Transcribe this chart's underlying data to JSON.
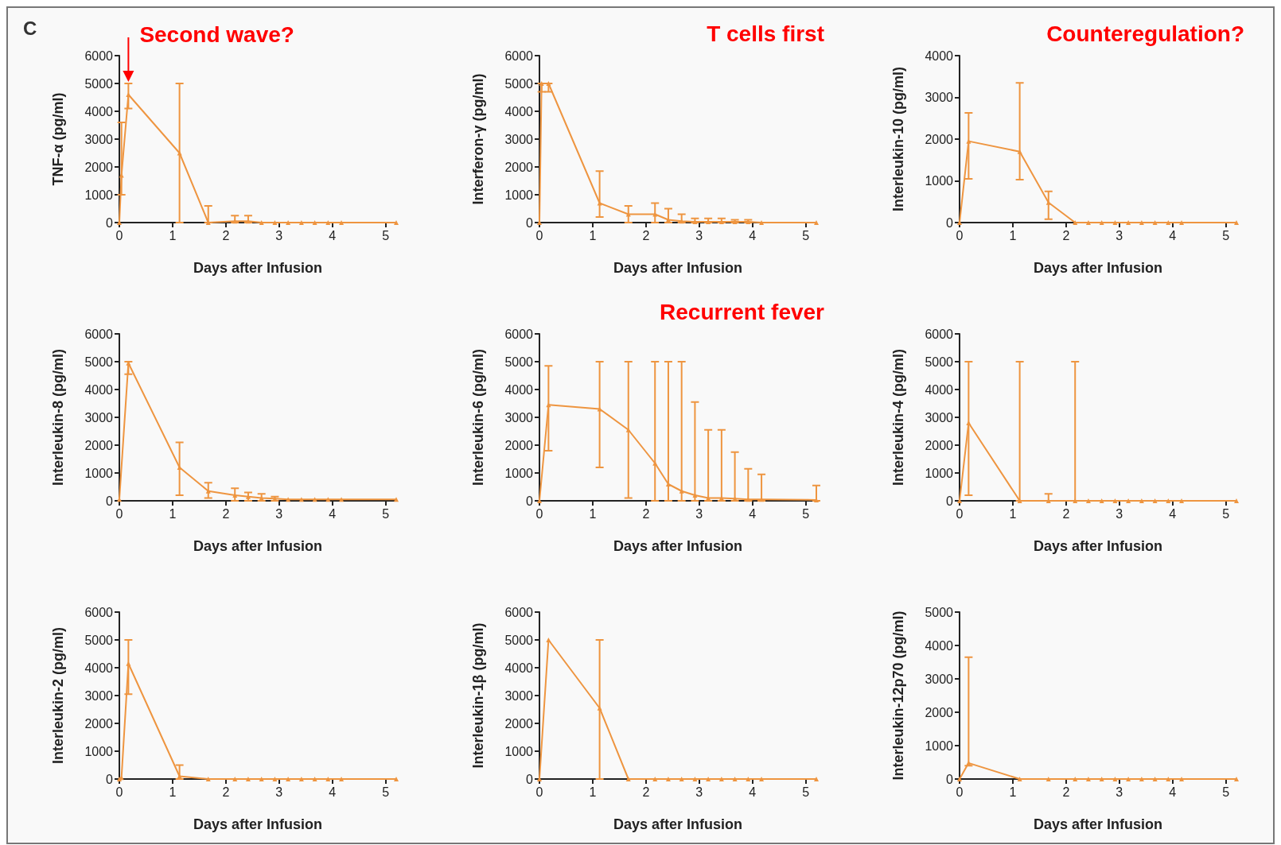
{
  "chart_data": [
    {
      "type": "line",
      "title": "C",
      "xlabel": "Days after Infusion",
      "ylabel": "TNF-α (pg/ml)",
      "xlim": [
        0,
        5.2
      ],
      "xticks": [
        0,
        1,
        2,
        3,
        4,
        5
      ],
      "ylim": [
        0,
        6000
      ],
      "yticks": [
        0,
        1000,
        2000,
        3000,
        4000,
        5000,
        6000
      ],
      "grid": false,
      "marker": "triangle",
      "annotations": [
        {
          "text": "Second wave?",
          "x": 0.17,
          "y": 5000
        }
      ],
      "series": [
        {
          "color": "#ee9540",
          "x": [
            0,
            0.04,
            0.17,
            1.13,
            1.67,
            2.17,
            2.42,
            2.67,
            2.92,
            3.17,
            3.42,
            3.67,
            3.92,
            4.17,
            5.2
          ],
          "values": [
            0,
            1700,
            4600,
            2500,
            0,
            50,
            50,
            0,
            0,
            0,
            0,
            0,
            0,
            0,
            0
          ],
          "errors": [
            null,
            [
              1000,
              3600
            ],
            [
              4100,
              5000
            ],
            [
              0,
              5000
            ],
            [
              0,
              600
            ],
            [
              0,
              250
            ],
            [
              0,
              250
            ],
            null,
            null,
            null,
            null,
            null,
            null,
            null,
            null
          ]
        }
      ]
    },
    {
      "type": "line",
      "xlabel": "Days after Infusion",
      "ylabel": "Interferon-γ (pg/ml)",
      "xlim": [
        0,
        5.2
      ],
      "xticks": [
        0,
        1,
        2,
        3,
        4,
        5
      ],
      "ylim": [
        0,
        6000
      ],
      "yticks": [
        0,
        1000,
        2000,
        3000,
        4000,
        5000,
        6000
      ],
      "grid": false,
      "marker": "triangle",
      "annotations": [
        "T cells first"
      ],
      "series": [
        {
          "color": "#ee9540",
          "x": [
            0,
            0.04,
            0.17,
            1.13,
            1.67,
            2.17,
            2.42,
            2.67,
            2.92,
            3.17,
            3.42,
            3.67,
            3.92,
            4.17,
            5.2
          ],
          "values": [
            0,
            5000,
            5000,
            700,
            300,
            300,
            100,
            50,
            30,
            30,
            30,
            30,
            30,
            0,
            0
          ],
          "errors": [
            null,
            [
              4700,
              5000
            ],
            [
              4700,
              5000
            ],
            [
              200,
              1850
            ],
            [
              0,
              600
            ],
            [
              0,
              700
            ],
            [
              0,
              500
            ],
            [
              0,
              300
            ],
            [
              0,
              150
            ],
            [
              0,
              150
            ],
            [
              0,
              150
            ],
            [
              0,
              100
            ],
            [
              0,
              100
            ],
            null,
            null
          ]
        }
      ]
    },
    {
      "type": "line",
      "xlabel": "Days after Infusion",
      "ylabel": "Interleukin-10 (pg/ml)",
      "xlim": [
        0,
        5.2
      ],
      "xticks": [
        0,
        1,
        2,
        3,
        4,
        5
      ],
      "ylim": [
        0,
        4000
      ],
      "yticks": [
        0,
        1000,
        2000,
        3000,
        4000
      ],
      "grid": false,
      "marker": "triangle",
      "annotations": [
        "Counteregulation?"
      ],
      "series": [
        {
          "color": "#ee9540",
          "x": [
            0,
            0.17,
            1.13,
            1.67,
            2.17,
            2.42,
            2.67,
            2.92,
            3.17,
            3.42,
            3.67,
            3.92,
            4.17,
            5.2
          ],
          "values": [
            0,
            1950,
            1700,
            480,
            0,
            0,
            0,
            0,
            0,
            0,
            0,
            0,
            0,
            0
          ],
          "errors": [
            null,
            [
              1050,
              2630
            ],
            [
              1030,
              3350
            ],
            [
              80,
              750
            ],
            null,
            null,
            null,
            null,
            null,
            null,
            null,
            null,
            null,
            null
          ]
        }
      ]
    },
    {
      "type": "line",
      "xlabel": "Days after Infusion",
      "ylabel": "Interleukin-8 (pg/ml)",
      "xlim": [
        0,
        5.2
      ],
      "xticks": [
        0,
        1,
        2,
        3,
        4,
        5
      ],
      "ylim": [
        0,
        6000
      ],
      "yticks": [
        0,
        1000,
        2000,
        3000,
        4000,
        5000,
        6000
      ],
      "grid": false,
      "marker": "triangle",
      "series": [
        {
          "color": "#ee9540",
          "x": [
            0,
            0.17,
            1.13,
            1.67,
            2.17,
            2.42,
            2.67,
            2.92,
            3.17,
            3.42,
            3.67,
            3.92,
            4.17,
            5.2
          ],
          "values": [
            50,
            4950,
            1200,
            350,
            200,
            150,
            100,
            80,
            50,
            50,
            50,
            50,
            50,
            50
          ],
          "errors": [
            null,
            [
              4550,
              5000
            ],
            [
              200,
              2100
            ],
            [
              100,
              650
            ],
            [
              0,
              450
            ],
            [
              0,
              300
            ],
            [
              0,
              250
            ],
            [
              0,
              150
            ],
            null,
            null,
            null,
            null,
            null,
            null
          ]
        }
      ]
    },
    {
      "type": "line",
      "xlabel": "Days after Infusion",
      "ylabel": "Interleukin-6 (pg/ml)",
      "xlim": [
        0,
        5.2
      ],
      "xticks": [
        0,
        1,
        2,
        3,
        4,
        5
      ],
      "ylim": [
        0,
        6000
      ],
      "yticks": [
        0,
        1000,
        2000,
        3000,
        4000,
        5000,
        6000
      ],
      "grid": false,
      "marker": "triangle",
      "annotations": [
        "Recurrent fever"
      ],
      "series": [
        {
          "color": "#ee9540",
          "x": [
            0,
            0.17,
            1.13,
            1.67,
            2.17,
            2.42,
            2.67,
            2.92,
            3.17,
            3.42,
            3.67,
            3.92,
            4.17,
            5.2
          ],
          "values": [
            0,
            3450,
            3300,
            2550,
            1350,
            600,
            350,
            200,
            100,
            100,
            80,
            50,
            50,
            30
          ],
          "errors": [
            null,
            [
              1800,
              4850
            ],
            [
              1200,
              5000
            ],
            [
              100,
              5000
            ],
            [
              0,
              5000
            ],
            [
              0,
              5000
            ],
            [
              0,
              5000
            ],
            [
              0,
              3550
            ],
            [
              0,
              2550
            ],
            [
              0,
              2550
            ],
            [
              0,
              1750
            ],
            [
              0,
              1150
            ],
            [
              0,
              950
            ],
            [
              0,
              550
            ]
          ]
        }
      ]
    },
    {
      "type": "line",
      "xlabel": "Days after Infusion",
      "ylabel": "Interleukin-4 (pg/ml)",
      "xlim": [
        0,
        5.2
      ],
      "xticks": [
        0,
        1,
        2,
        3,
        4,
        5
      ],
      "ylim": [
        0,
        6000
      ],
      "yticks": [
        0,
        1000,
        2000,
        3000,
        4000,
        5000,
        6000
      ],
      "grid": false,
      "marker": "triangle",
      "series": [
        {
          "color": "#ee9540",
          "x": [
            0,
            0.17,
            1.13,
            1.67,
            2.17,
            2.42,
            2.67,
            2.92,
            3.17,
            3.42,
            3.67,
            3.92,
            4.17,
            5.2
          ],
          "values": [
            0,
            2800,
            0,
            0,
            0,
            0,
            0,
            0,
            0,
            0,
            0,
            0,
            0,
            0
          ],
          "errors": [
            null,
            [
              200,
              5000
            ],
            [
              0,
              5000
            ],
            [
              0,
              250
            ],
            [
              0,
              5000
            ],
            null,
            null,
            null,
            null,
            null,
            null,
            null,
            null,
            null
          ]
        }
      ]
    },
    {
      "type": "line",
      "xlabel": "Days after Infusion",
      "ylabel": "Interleukin-2 (pg/ml)",
      "xlim": [
        0,
        5.2
      ],
      "xticks": [
        0,
        1,
        2,
        3,
        4,
        5
      ],
      "ylim": [
        0,
        6000
      ],
      "yticks": [
        0,
        1000,
        2000,
        3000,
        4000,
        5000,
        6000
      ],
      "grid": false,
      "marker": "triangle",
      "series": [
        {
          "color": "#ee9540",
          "x": [
            0,
            0.04,
            0.17,
            1.13,
            1.67,
            2.17,
            2.42,
            2.67,
            2.92,
            3.17,
            3.42,
            3.67,
            3.92,
            4.17,
            5.2
          ],
          "values": [
            0,
            50,
            4150,
            100,
            0,
            0,
            0,
            0,
            0,
            0,
            0,
            0,
            0,
            0,
            0
          ],
          "errors": [
            null,
            null,
            [
              3050,
              5000
            ],
            [
              0,
              500
            ],
            null,
            null,
            null,
            null,
            null,
            null,
            null,
            null,
            null,
            null,
            null
          ]
        }
      ]
    },
    {
      "type": "line",
      "xlabel": "Days after Infusion",
      "ylabel": "Interleukin-1β (pg/ml)",
      "xlim": [
        0,
        5.2
      ],
      "xticks": [
        0,
        1,
        2,
        3,
        4,
        5
      ],
      "ylim": [
        0,
        6000
      ],
      "yticks": [
        0,
        1000,
        2000,
        3000,
        4000,
        5000,
        6000
      ],
      "grid": false,
      "marker": "triangle",
      "series": [
        {
          "color": "#ee9540",
          "x": [
            0,
            0.17,
            1.13,
            1.67,
            2.17,
            2.42,
            2.67,
            2.92,
            3.17,
            3.42,
            3.67,
            3.92,
            4.17,
            5.2
          ],
          "values": [
            0,
            5000,
            2550,
            0,
            0,
            0,
            0,
            0,
            0,
            0,
            0,
            0,
            0,
            0
          ],
          "errors": [
            null,
            null,
            [
              0,
              5000
            ],
            null,
            null,
            null,
            null,
            null,
            null,
            null,
            null,
            null,
            null,
            null
          ]
        }
      ]
    },
    {
      "type": "line",
      "xlabel": "Days after Infusion",
      "ylabel": "Interleukin-12p70 (pg/ml)",
      "xlim": [
        0,
        5.2
      ],
      "xticks": [
        0,
        1,
        2,
        3,
        4,
        5
      ],
      "ylim": [
        0,
        5000
      ],
      "yticks": [
        0,
        1000,
        2000,
        3000,
        4000,
        5000
      ],
      "grid": false,
      "marker": "triangle",
      "series": [
        {
          "color": "#ee9540",
          "x": [
            0,
            0.17,
            1.13,
            1.67,
            2.17,
            2.42,
            2.67,
            2.92,
            3.17,
            3.42,
            3.67,
            3.92,
            4.17,
            5.2
          ],
          "values": [
            0,
            480,
            0,
            0,
            0,
            0,
            0,
            0,
            0,
            0,
            0,
            0,
            0,
            0
          ],
          "errors": [
            null,
            [
              400,
              3650
            ],
            null,
            null,
            null,
            null,
            null,
            null,
            null,
            null,
            null,
            null,
            null,
            null
          ]
        }
      ]
    }
  ]
}
